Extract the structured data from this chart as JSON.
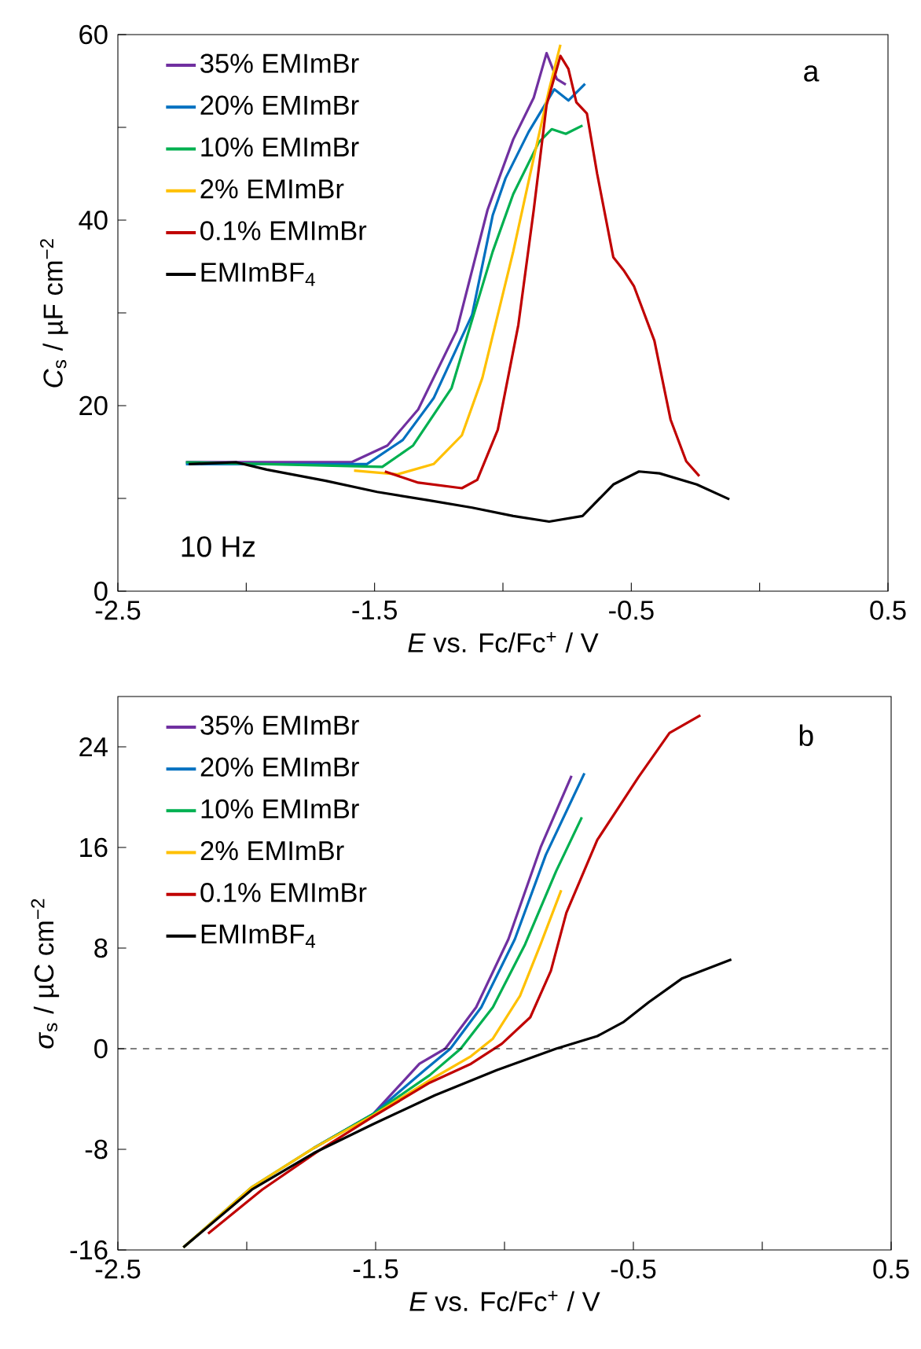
{
  "chart_data": [
    {
      "type": "line",
      "xlabel": "*E* vs. Fc/Fc$^{+}$ / V",
      "ylabel": "*C*$_{s}$ / µF cm$^{−2}$",
      "annotations": [
        "a",
        "10 Hz"
      ],
      "xlim": [
        -2.5,
        0.5
      ],
      "ylim": [
        0,
        60
      ],
      "xticks": [
        -2.5,
        {
          "value": -2,
          "label": null
        },
        -1.5,
        {
          "value": -1,
          "label": null
        },
        -0.5,
        {
          "value": 0,
          "label": null
        },
        0.5
      ],
      "yticks": [
        0,
        {
          "value": 10,
          "label": null
        },
        20,
        {
          "value": 30,
          "label": null
        },
        40,
        {
          "value": 50,
          "label": null
        },
        60
      ],
      "legend": "top left",
      "grid": false,
      "line_style": "solid",
      "series": [
        {
          "name": "35% EMImBr",
          "color": "#7030a0",
          "x": [
            -2.235,
            -1.59,
            -1.45,
            -1.33,
            -1.18,
            -1.06,
            -0.96,
            -0.88,
            -0.83,
            -0.79,
            -0.755
          ],
          "values": [
            13.9,
            13.9,
            15.7,
            19.6,
            28.1,
            41.1,
            48.7,
            53.2,
            58.0,
            55.2,
            54.6
          ]
        },
        {
          "name": "20% EMImBr",
          "color": "#0070c0",
          "x": [
            -2.235,
            -1.53,
            -1.39,
            -1.27,
            -1.12,
            -1.04,
            -0.99,
            -0.9,
            -0.8,
            -0.745,
            -0.68
          ],
          "values": [
            13.7,
            13.7,
            16.3,
            20.8,
            29.8,
            40.5,
            44.5,
            49.5,
            54.1,
            52.9,
            54.7
          ]
        },
        {
          "name": "10% EMImBr",
          "color": "#00b050",
          "x": [
            -2.235,
            -1.47,
            -1.35,
            -1.2,
            -1.04,
            -0.96,
            -0.86,
            -0.81,
            -0.755,
            -0.69
          ],
          "values": [
            13.9,
            13.4,
            15.7,
            21.9,
            36.6,
            42.8,
            48.4,
            49.8,
            49.3,
            50.2
          ]
        },
        {
          "name": "2% EMImBr",
          "color": "#ffc000",
          "x": [
            -1.58,
            -1.41,
            -1.27,
            -1.16,
            -1.08,
            -0.96,
            -0.88,
            -0.82,
            -0.776
          ],
          "values": [
            13.0,
            12.6,
            13.7,
            16.8,
            23.0,
            36.6,
            46.7,
            54.1,
            58.9
          ]
        },
        {
          "name": "0.1% EMImBr",
          "color": "#c00000",
          "x": [
            -1.46,
            -1.33,
            -1.16,
            -1.1,
            -1.02,
            -0.94,
            -0.88,
            -0.83,
            -0.776,
            -0.745,
            -0.714,
            -0.673,
            -0.633,
            -0.57,
            -0.53,
            -0.49,
            -0.41,
            -0.347,
            -0.286,
            -0.235
          ],
          "values": [
            12.9,
            11.7,
            11.1,
            12.0,
            17.4,
            28.7,
            41.1,
            52.4,
            57.7,
            56.3,
            52.7,
            51.5,
            45.0,
            36.0,
            34.6,
            32.9,
            27.0,
            18.5,
            14.0,
            12.4
          ]
        },
        {
          "name": "EMImBF$_{4}$",
          "color": "#000000",
          "x": [
            -2.224,
            -2.04,
            -1.92,
            -1.69,
            -1.49,
            -1.29,
            -1.12,
            -0.96,
            -0.82,
            -0.69,
            -0.57,
            -0.47,
            -0.39,
            -0.245,
            -0.118
          ],
          "values": [
            13.7,
            13.9,
            13.1,
            11.9,
            10.7,
            9.8,
            9.0,
            8.1,
            7.5,
            8.1,
            11.5,
            12.9,
            12.7,
            11.5,
            9.9
          ]
        }
      ]
    },
    {
      "type": "line",
      "xlabel": "*E* vs. Fc/Fc$^{+}$ / V",
      "ylabel": "*σ*$_{s}$ / µC cm$^{−2}$",
      "annotations": [
        "b"
      ],
      "xlim": [
        -2.5,
        0.5
      ],
      "ylim": [
        -16,
        28
      ],
      "xticks": [
        -2.5,
        {
          "value": -2,
          "label": null
        },
        -1.5,
        {
          "value": -1,
          "label": null
        },
        -0.5,
        {
          "value": 0,
          "label": null
        },
        0.5
      ],
      "yticks": [
        -16,
        -8,
        0,
        8,
        16,
        24
      ],
      "legend": "top left",
      "grid": false,
      "line_style": "solid",
      "ref_lines": [
        {
          "axis": "y",
          "value": 0,
          "line_style": "dashed",
          "color": "#000000"
        }
      ],
      "series": [
        {
          "name": "35% EMImBr",
          "color": "#7030a0",
          "x": [
            -1.74,
            -1.51,
            -1.33,
            -1.23,
            -1.11,
            -0.985,
            -0.86,
            -0.74
          ],
          "values": [
            -7.9,
            -5.2,
            -1.2,
            0,
            3.3,
            8.7,
            16.0,
            21.7
          ]
        },
        {
          "name": "20% EMImBr",
          "color": "#0070c0",
          "x": [
            -1.74,
            -1.51,
            -1.31,
            -1.21,
            -1.09,
            -0.96,
            -0.84,
            -0.69
          ],
          "values": [
            -7.9,
            -5.2,
            -1.7,
            0,
            3.3,
            8.7,
            15.4,
            21.9
          ]
        },
        {
          "name": "10% EMImBr",
          "color": "#00b050",
          "x": [
            -2.246,
            -1.98,
            -1.74,
            -1.51,
            -1.29,
            -1.17,
            -1.045,
            -0.92,
            -0.8,
            -0.7
          ],
          "values": [
            -15.8,
            -11.0,
            -7.9,
            -5.2,
            -2.1,
            0,
            3.3,
            8.3,
            14.1,
            18.4
          ]
        },
        {
          "name": "2% EMImBr",
          "color": "#ffc000",
          "x": [
            -2.246,
            -1.98,
            -1.74,
            -1.51,
            -1.29,
            -1.13,
            -1.045,
            -0.94,
            -0.86,
            -0.78
          ],
          "values": [
            -15.8,
            -11.0,
            -7.9,
            -5.3,
            -2.5,
            -0.6,
            0.8,
            4.2,
            8.3,
            12.6
          ]
        },
        {
          "name": "0.1% EMImBr",
          "color": "#c00000",
          "x": [
            -2.15,
            -1.94,
            -1.72,
            -1.51,
            -1.29,
            -1.13,
            -1.01,
            -0.9,
            -0.82,
            -0.76,
            -0.64,
            -0.48,
            -0.36,
            -0.24
          ],
          "values": [
            -14.7,
            -11.2,
            -8.1,
            -5.4,
            -2.7,
            -1.2,
            0.4,
            2.5,
            6.2,
            10.8,
            16.6,
            21.6,
            25.1,
            26.5
          ]
        },
        {
          "name": "EMImBF$_{4}$",
          "color": "#000000",
          "x": [
            -2.246,
            -1.98,
            -1.74,
            -1.51,
            -1.27,
            -1.03,
            -0.8,
            -0.64,
            -0.54,
            -0.44,
            -0.31,
            -0.12
          ],
          "values": [
            -15.8,
            -11.2,
            -8.3,
            -6.0,
            -3.7,
            -1.7,
            0,
            1.0,
            2.1,
            3.7,
            5.6,
            7.1
          ]
        }
      ]
    }
  ]
}
